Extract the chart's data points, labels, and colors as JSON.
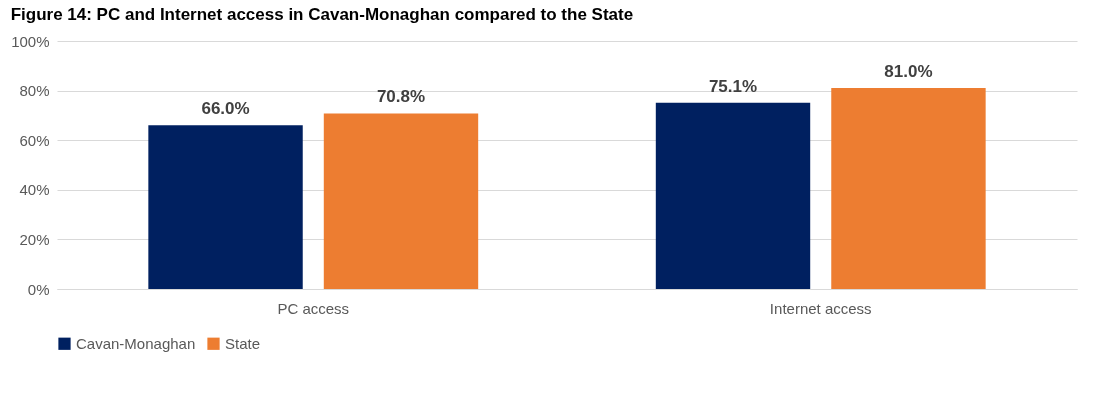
{
  "chart_data": {
    "type": "bar",
    "title": "Figure 14: PC and Internet access in Cavan-Monaghan compared to the State",
    "categories": [
      "PC access",
      "Internet access"
    ],
    "series": [
      {
        "name": "Cavan-Monaghan",
        "color": "#002060",
        "values": [
          66.0,
          75.1
        ],
        "value_labels": [
          "66.0%",
          "75.1%"
        ]
      },
      {
        "name": "State",
        "color": "#ed7d31",
        "values": [
          70.8,
          81.0
        ],
        "value_labels": [
          "70.8%",
          "81.0%"
        ]
      }
    ],
    "ylim": [
      0,
      100
    ],
    "yticks": [
      {
        "value": 0,
        "label": "0%"
      },
      {
        "value": 20,
        "label": "20%"
      },
      {
        "value": 40,
        "label": "40%"
      },
      {
        "value": 60,
        "label": "60%"
      },
      {
        "value": 80,
        "label": "80%"
      },
      {
        "value": 100,
        "label": "100%"
      }
    ],
    "grid": "y",
    "legend": "bottom"
  }
}
